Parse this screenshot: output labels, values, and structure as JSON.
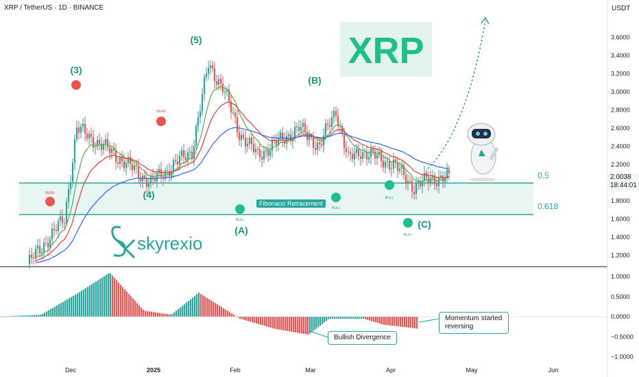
{
  "header": {
    "symbol_line": "XRP / TetherUS · 1D · BINANCE",
    "currency": "USDT"
  },
  "price": {
    "current": "2.0038",
    "countdown": "18:44:01"
  },
  "brand": {
    "ticker_logo": "XRP",
    "watermark": "skyrexio"
  },
  "colors": {
    "bull": "#26a69a",
    "bear": "#ef5350",
    "ema_fast": "#4caf50",
    "ema_mid": "#e53935",
    "ema_slow": "#2962ff"
  },
  "fib": {
    "label": "Fibonacci Retracement",
    "levels": [
      {
        "ratio": "0.5",
        "price": 1.95
      },
      {
        "ratio": "0.618",
        "price": 1.6
      }
    ]
  },
  "annotations": {
    "waves": [
      "(3)",
      "(4)",
      "(5)",
      "(A)",
      "(B)",
      "(C)"
    ],
    "bear_label": "BEAR",
    "bull_label": "BULL",
    "momentum_note": "Momentum started reversing",
    "divergence_note": "Bullish Divergence"
  },
  "chart_data": [
    {
      "type": "candlestick",
      "title": "",
      "y_ticks": [
        "3.6000",
        "3.4000",
        "3.2000",
        "3.0000",
        "2.8000",
        "2.6000",
        "2.4000",
        "2.2000",
        "2.0000",
        "1.8000",
        "1.6000",
        "1.4000",
        "1.2000"
      ],
      "x_ticks": [
        "Dec",
        "2025",
        "Feb",
        "Mar",
        "Apr",
        "May",
        "Jun"
      ],
      "ylim": [
        1.1,
        3.75
      ],
      "series": [
        {
          "name": "",
          "values": [
            1.1,
            1.6,
            2.6,
            2.35,
            2.0,
            2.35,
            3.3,
            3.05,
            2.55,
            2.3,
            2.6,
            2.4,
            2.8,
            2.25,
            2.35,
            2.2,
            1.95,
            2.05
          ]
        }
      ]
    },
    {
      "type": "bar",
      "title": "",
      "y_ticks": [
        "1.0000",
        "0.5000",
        "0.0000",
        "−0.5000",
        "−1.0000"
      ],
      "ylim": [
        -1.05,
        1.15
      ]
    }
  ]
}
